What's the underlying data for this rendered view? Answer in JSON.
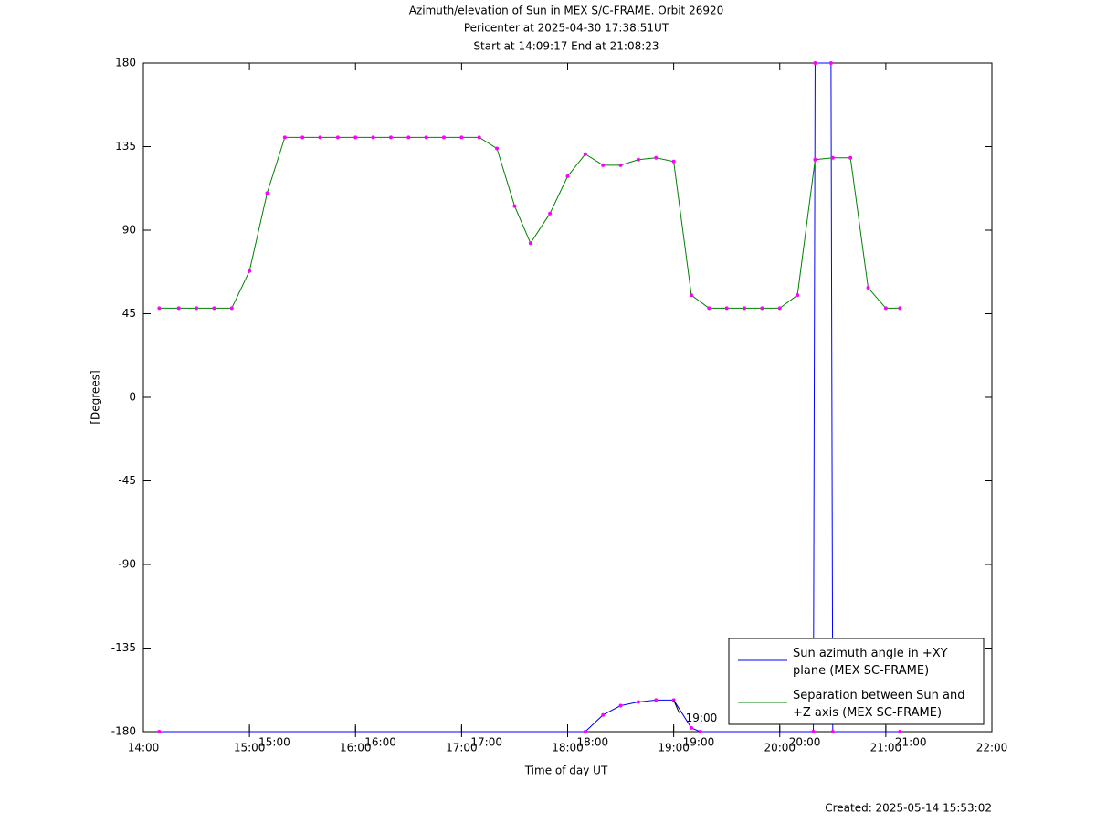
{
  "chart_data": {
    "type": "line",
    "title": "Azimuth/elevation of Sun in MEX S/C-FRAME.  Orbit 26920",
    "subtitle": "Pericenter at 2025-04-30 17:38:51UT",
    "subtitle2": "Start at 14:09:17 End at 21:08:23",
    "x_label": "Time of day UT",
    "y_label": "[Degrees]",
    "footer": "Created: 2025-05-14 15:53:02",
    "xlim": [
      "14:00",
      "22:00"
    ],
    "xticks": [
      "14:00",
      "15:00",
      "16:00",
      "17:00",
      "18:00",
      "19:00",
      "20:00",
      "21:00",
      "22:00"
    ],
    "ylim": [
      -180,
      180
    ],
    "yticks": [
      -180,
      -135,
      -90,
      -45,
      0,
      45,
      90,
      135,
      180
    ],
    "legend_position": "lower right",
    "marker_color": "#ff00ff",
    "series": [
      {
        "name": "Sun azimuth angle in +XY plane (MEX SC-FRAME)",
        "color": "#0000ff",
        "x": [
          "14:09",
          "18:10",
          "18:20",
          "18:30",
          "18:40",
          "18:50",
          "19:00",
          "19:10",
          "19:15",
          "20:19",
          "20:20",
          "20:29",
          "20:30",
          "21:08"
        ],
        "values": [
          -180,
          -180,
          -171,
          -166,
          -164,
          -163,
          -163,
          -178,
          -180,
          -180,
          180,
          180,
          -180,
          -180
        ]
      },
      {
        "name": "Separation between Sun and +Z axis (MEX SC-FRAME)",
        "color": "#008000",
        "x": [
          "14:09",
          "14:20",
          "14:30",
          "14:40",
          "14:50",
          "15:00",
          "15:10",
          "15:20",
          "15:30",
          "15:40",
          "15:50",
          "16:00",
          "16:10",
          "16:20",
          "16:30",
          "16:40",
          "16:50",
          "17:00",
          "17:10",
          "17:20",
          "17:30",
          "17:39",
          "17:50",
          "18:00",
          "18:10",
          "18:20",
          "18:30",
          "18:40",
          "18:50",
          "19:00",
          "19:10",
          "19:20",
          "19:30",
          "19:40",
          "19:50",
          "20:00",
          "20:10",
          "20:20",
          "20:30",
          "20:40",
          "20:50",
          "21:00",
          "21:08"
        ],
        "values": [
          48,
          48,
          48,
          48,
          48,
          68,
          110,
          140,
          140,
          140,
          140,
          140,
          140,
          140,
          140,
          140,
          140,
          140,
          140,
          134,
          103,
          83,
          99,
          119,
          131,
          125,
          125,
          128,
          129,
          127,
          55,
          48,
          48,
          48,
          48,
          48,
          55,
          128,
          129,
          129,
          59,
          48,
          48
        ]
      }
    ],
    "time_marks": [
      "15:00",
      "16:00",
      "17:00",
      "18:00",
      "19:00",
      "20:00",
      "21:00"
    ],
    "annotation": {
      "text": "19:00",
      "x": "19:00",
      "y": -163
    }
  }
}
